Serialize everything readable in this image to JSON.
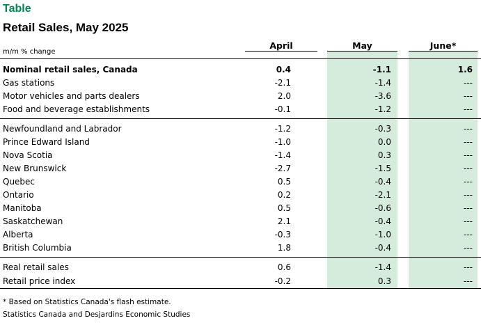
{
  "header": {
    "label": "Table",
    "title": "Retail Sales, May 2025",
    "units": "m/m % change",
    "columns": [
      "April",
      "May",
      "June*"
    ]
  },
  "sections": [
    {
      "rows": [
        {
          "label": "Nominal retail sales, Canada",
          "april": "0.4",
          "may": "-1.1",
          "june": "1.6",
          "bold": true
        },
        {
          "label": "Gas stations",
          "april": "-2.1",
          "may": "-1.4",
          "june": "---"
        },
        {
          "label": "Motor vehicles and parts dealers",
          "april": "2.0",
          "may": "-3.6",
          "june": "---"
        },
        {
          "label": "Food and beverage establishments",
          "april": "-0.1",
          "may": "-1.2",
          "june": "---"
        }
      ]
    },
    {
      "rows": [
        {
          "label": "Newfoundland and Labrador",
          "april": "-1.2",
          "may": "-0.3",
          "june": "---"
        },
        {
          "label": "Prince Edward Island",
          "april": "-1.0",
          "may": "0.0",
          "june": "---"
        },
        {
          "label": "Nova Scotia",
          "april": "-1.4",
          "may": "0.3",
          "june": "---"
        },
        {
          "label": "New Brunswick",
          "april": "-2.7",
          "may": "-1.5",
          "june": "---"
        },
        {
          "label": "Quebec",
          "april": "0.5",
          "may": "-0.4",
          "june": "---"
        },
        {
          "label": "Ontario",
          "april": "0.2",
          "may": "-2.1",
          "june": "---"
        },
        {
          "label": "Manitoba",
          "april": "0.5",
          "may": "-0.6",
          "june": "---"
        },
        {
          "label": "Saskatchewan",
          "april": "2.1",
          "may": "-0.4",
          "june": "---"
        },
        {
          "label": "Alberta",
          "april": "-0.3",
          "may": "-1.0",
          "june": "---"
        },
        {
          "label": "British Columbia",
          "april": "1.8",
          "may": "-0.4",
          "june": "---"
        }
      ]
    },
    {
      "rows": [
        {
          "label": "Real retail sales",
          "april": "0.6",
          "may": "-1.4",
          "june": "---"
        },
        {
          "label": "Retail price index",
          "april": "-0.2",
          "may": "0.3",
          "june": "---"
        }
      ]
    }
  ],
  "footnotes": {
    "note": "* Based on Statistics Canada's flash estimate.",
    "source": "Statistics Canada and Desjardins Economic Studies"
  },
  "colors": {
    "title_green": "#00874E",
    "column_shade": "#D5EBDC"
  }
}
